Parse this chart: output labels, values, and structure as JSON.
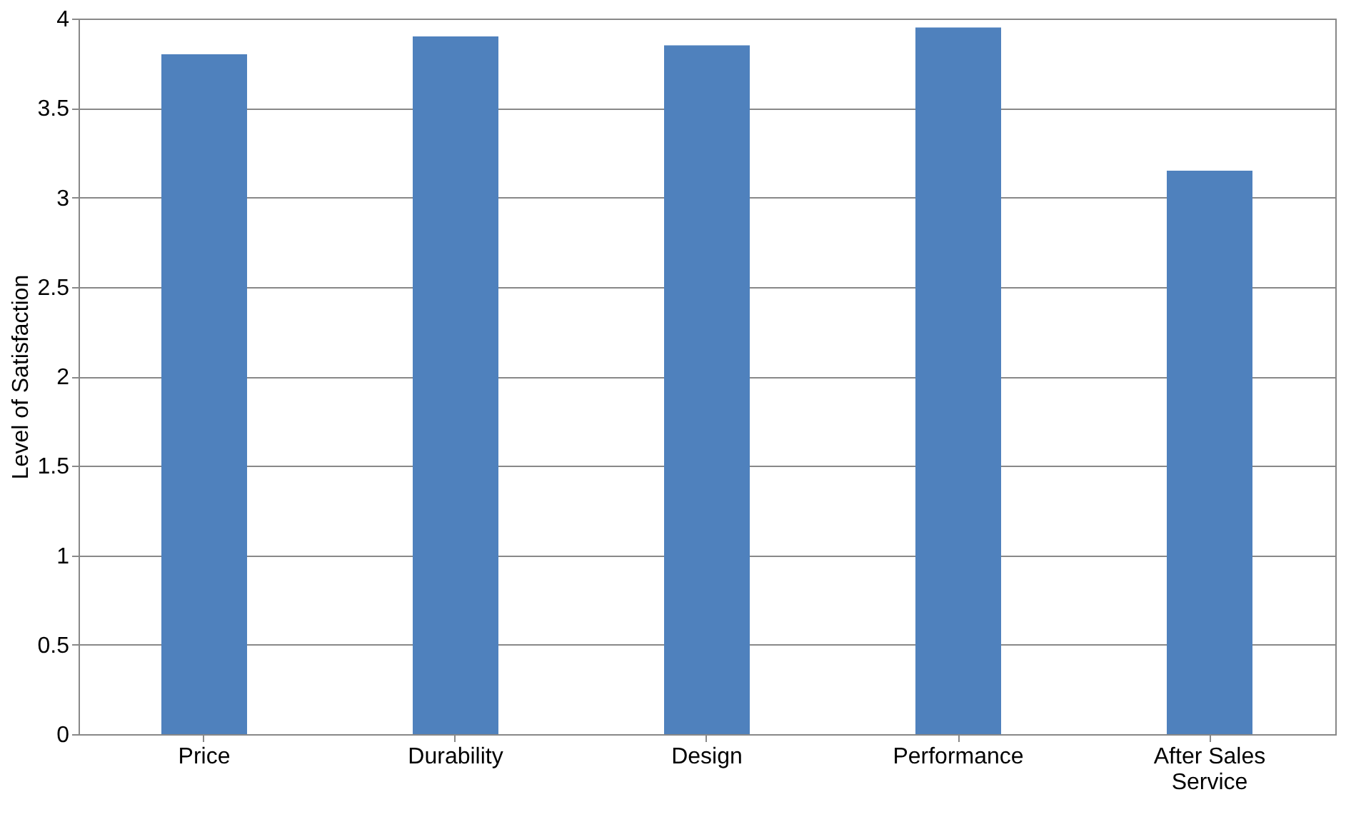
{
  "chart_data": {
    "type": "bar",
    "ylabel": "Level of Satisfaction",
    "categories": [
      "Price",
      "Durability",
      "Design",
      "Performance",
      "After Sales Service"
    ],
    "values": [
      3.8,
      3.9,
      3.85,
      3.95,
      3.15
    ],
    "color": "#4f81bd",
    "ylim": [
      0,
      4
    ],
    "yticks": [
      0,
      0.5,
      1,
      1.5,
      2,
      2.5,
      3,
      3.5,
      4
    ],
    "grid": "y"
  }
}
